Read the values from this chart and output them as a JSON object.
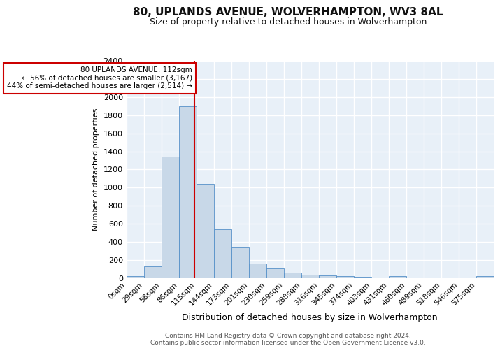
{
  "title1": "80, UPLANDS AVENUE, WOLVERHAMPTON, WV3 8AL",
  "title2": "Size of property relative to detached houses in Wolverhampton",
  "xlabel": "Distribution of detached houses by size in Wolverhampton",
  "ylabel": "Number of detached properties",
  "bin_labels": [
    "0sqm",
    "29sqm",
    "58sqm",
    "86sqm",
    "115sqm",
    "144sqm",
    "173sqm",
    "201sqm",
    "230sqm",
    "259sqm",
    "288sqm",
    "316sqm",
    "345sqm",
    "374sqm",
    "403sqm",
    "431sqm",
    "460sqm",
    "489sqm",
    "518sqm",
    "546sqm",
    "575sqm"
  ],
  "bar_values": [
    20,
    130,
    1340,
    1900,
    1040,
    540,
    340,
    160,
    105,
    55,
    35,
    30,
    20,
    15,
    0,
    20,
    0,
    0,
    0,
    0,
    20
  ],
  "bar_color": "#c8d8e8",
  "bar_edge_color": "#5590c8",
  "property_sqm": 112,
  "bin_edges_numeric": [
    0,
    29,
    58,
    86,
    115,
    144,
    173,
    201,
    230,
    259,
    288,
    316,
    345,
    374,
    403,
    431,
    460,
    489,
    518,
    546,
    575
  ],
  "annotation_title": "80 UPLANDS AVENUE: 112sqm",
  "annotation_line1": "← 56% of detached houses are smaller (3,167)",
  "annotation_line2": "44% of semi-detached houses are larger (2,514) →",
  "vline_color": "#cc0000",
  "annotation_box_color": "#ffffff",
  "annotation_box_edge": "#cc0000",
  "footer1": "Contains HM Land Registry data © Crown copyright and database right 2024.",
  "footer2": "Contains public sector information licensed under the Open Government Licence v3.0.",
  "ylim": [
    0,
    2400
  ],
  "yticks": [
    0,
    200,
    400,
    600,
    800,
    1000,
    1200,
    1400,
    1600,
    1800,
    2000,
    2200,
    2400
  ],
  "background_color": "#e8f0f8",
  "grid_color": "#ffffff",
  "title1_fontsize": 11,
  "title2_fontsize": 9,
  "ylabel_fontsize": 8,
  "xlabel_fontsize": 9,
  "tick_fontsize": 8,
  "xtick_fontsize": 7.5,
  "footer_fontsize": 6.5
}
